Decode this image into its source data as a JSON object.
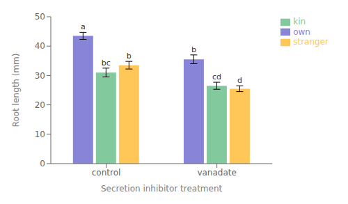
{
  "chart_data": {
    "type": "bar",
    "categories": [
      "control",
      "vanadate"
    ],
    "series": [
      {
        "name": "own",
        "color": "#8884d8",
        "values": [
          43.5,
          35.5
        ],
        "errors": [
          1.2,
          1.5
        ],
        "annotations": [
          "a",
          "b"
        ]
      },
      {
        "name": "kin",
        "color": "#82ca9d",
        "values": [
          31.0,
          26.5
        ],
        "errors": [
          1.5,
          1.2
        ],
        "annotations": [
          "bc",
          "cd"
        ]
      },
      {
        "name": "stranger",
        "color": "#ffc658",
        "values": [
          33.5,
          25.5
        ],
        "errors": [
          1.3,
          1.0
        ],
        "annotations": [
          "b",
          "d"
        ]
      }
    ],
    "xlabel": "Secretion inhibitor treatment",
    "ylabel": "Root length (mm)",
    "ylim": [
      0,
      50
    ],
    "yticks": [
      0,
      10,
      20,
      30,
      40,
      50
    ],
    "grid": false,
    "legend": "right"
  }
}
